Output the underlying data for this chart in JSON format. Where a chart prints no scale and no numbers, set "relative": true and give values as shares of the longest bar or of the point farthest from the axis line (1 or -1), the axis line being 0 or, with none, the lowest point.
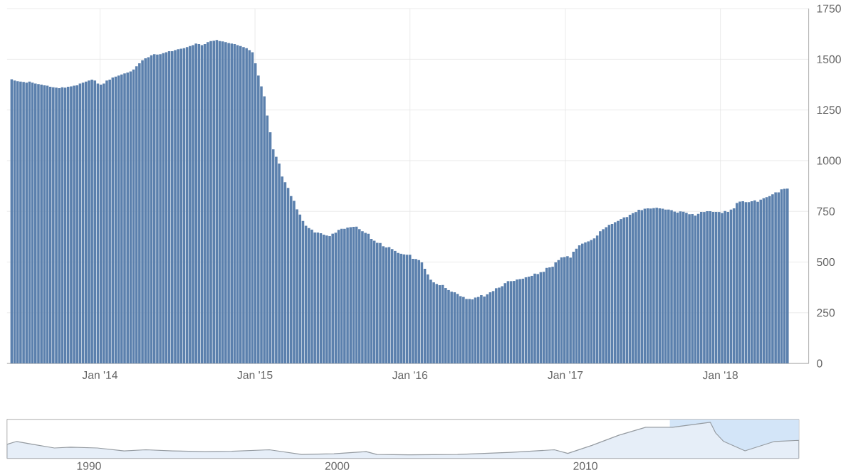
{
  "chart_data": [
    {
      "type": "bar",
      "color": "#5b80ad",
      "grid": true,
      "x": [
        "2013-06-07",
        "2013-06-14",
        "2013-06-21",
        "2013-06-28",
        "2013-07-05",
        "2013-07-12",
        "2013-07-19",
        "2013-07-26",
        "2013-08-02",
        "2013-08-09",
        "2013-08-16",
        "2013-08-23",
        "2013-08-30",
        "2013-09-06",
        "2013-09-13",
        "2013-09-20",
        "2013-09-27",
        "2013-10-04",
        "2013-10-11",
        "2013-10-18",
        "2013-10-25",
        "2013-11-01",
        "2013-11-08",
        "2013-11-15",
        "2013-11-22",
        "2013-11-29",
        "2013-12-06",
        "2013-12-13",
        "2013-12-20",
        "2013-12-27",
        "2014-01-03",
        "2014-01-10",
        "2014-01-17",
        "2014-01-24",
        "2014-01-31",
        "2014-02-07",
        "2014-02-14",
        "2014-02-21",
        "2014-02-28",
        "2014-03-07",
        "2014-03-14",
        "2014-03-21",
        "2014-03-28",
        "2014-04-04",
        "2014-04-11",
        "2014-04-18",
        "2014-04-25",
        "2014-05-02",
        "2014-05-09",
        "2014-05-16",
        "2014-05-23",
        "2014-05-30",
        "2014-06-06",
        "2014-06-13",
        "2014-06-20",
        "2014-06-27",
        "2014-07-04",
        "2014-07-11",
        "2014-07-18",
        "2014-07-25",
        "2014-08-01",
        "2014-08-08",
        "2014-08-15",
        "2014-08-22",
        "2014-08-29",
        "2014-09-05",
        "2014-09-12",
        "2014-09-19",
        "2014-09-26",
        "2014-10-03",
        "2014-10-10",
        "2014-10-17",
        "2014-10-24",
        "2014-10-31",
        "2014-11-07",
        "2014-11-14",
        "2014-11-21",
        "2014-11-28",
        "2014-12-05",
        "2014-12-12",
        "2014-12-19",
        "2014-12-26",
        "2015-01-02",
        "2015-01-09",
        "2015-01-16",
        "2015-01-23",
        "2015-01-30",
        "2015-02-06",
        "2015-02-13",
        "2015-02-20",
        "2015-02-27",
        "2015-03-06",
        "2015-03-13",
        "2015-03-20",
        "2015-03-27",
        "2015-04-03",
        "2015-04-10",
        "2015-04-17",
        "2015-04-24",
        "2015-05-01",
        "2015-05-08",
        "2015-05-15",
        "2015-05-22",
        "2015-05-29",
        "2015-06-05",
        "2015-06-12",
        "2015-06-19",
        "2015-06-26",
        "2015-07-03",
        "2015-07-10",
        "2015-07-17",
        "2015-07-24",
        "2015-07-31",
        "2015-08-07",
        "2015-08-14",
        "2015-08-21",
        "2015-08-28",
        "2015-09-04",
        "2015-09-11",
        "2015-09-18",
        "2015-09-25",
        "2015-10-02",
        "2015-10-09",
        "2015-10-16",
        "2015-10-23",
        "2015-10-30",
        "2015-11-06",
        "2015-11-13",
        "2015-11-20",
        "2015-11-27",
        "2015-12-04",
        "2015-12-11",
        "2015-12-18",
        "2015-12-25",
        "2016-01-01",
        "2016-01-08",
        "2016-01-15",
        "2016-01-22",
        "2016-01-29",
        "2016-02-05",
        "2016-02-12",
        "2016-02-19",
        "2016-02-26",
        "2016-03-04",
        "2016-03-11",
        "2016-03-18",
        "2016-03-25",
        "2016-04-01",
        "2016-04-08",
        "2016-04-15",
        "2016-04-22",
        "2016-04-29",
        "2016-05-06",
        "2016-05-13",
        "2016-05-20",
        "2016-05-27",
        "2016-06-03",
        "2016-06-10",
        "2016-06-17",
        "2016-06-24",
        "2016-07-01",
        "2016-07-08",
        "2016-07-15",
        "2016-07-22",
        "2016-07-29",
        "2016-08-05",
        "2016-08-12",
        "2016-08-19",
        "2016-08-26",
        "2016-09-02",
        "2016-09-09",
        "2016-09-16",
        "2016-09-23",
        "2016-09-30",
        "2016-10-07",
        "2016-10-14",
        "2016-10-21",
        "2016-10-28",
        "2016-11-04",
        "2016-11-11",
        "2016-11-18",
        "2016-11-25",
        "2016-12-02",
        "2016-12-09",
        "2016-12-16",
        "2016-12-23",
        "2016-12-30",
        "2017-01-06",
        "2017-01-13",
        "2017-01-20",
        "2017-01-27",
        "2017-02-03",
        "2017-02-10",
        "2017-02-17",
        "2017-02-24",
        "2017-03-03",
        "2017-03-10",
        "2017-03-17",
        "2017-03-24",
        "2017-03-31",
        "2017-04-07",
        "2017-04-14",
        "2017-04-21",
        "2017-04-28",
        "2017-05-05",
        "2017-05-12",
        "2017-05-19",
        "2017-05-26",
        "2017-06-02",
        "2017-06-09",
        "2017-06-16",
        "2017-06-23",
        "2017-06-30",
        "2017-07-07",
        "2017-07-14",
        "2017-07-21",
        "2017-07-28",
        "2017-08-04",
        "2017-08-11",
        "2017-08-18",
        "2017-08-25",
        "2017-09-01",
        "2017-09-08",
        "2017-09-15",
        "2017-09-22",
        "2017-09-29",
        "2017-10-06",
        "2017-10-13",
        "2017-10-20",
        "2017-10-27",
        "2017-11-03",
        "2017-11-10",
        "2017-11-17",
        "2017-11-24",
        "2017-12-01",
        "2017-12-08",
        "2017-12-15",
        "2017-12-22",
        "2017-12-29",
        "2018-01-05",
        "2018-01-12",
        "2018-01-19",
        "2018-01-26",
        "2018-02-02",
        "2018-02-09",
        "2018-02-16",
        "2018-02-23",
        "2018-03-02",
        "2018-03-09",
        "2018-03-16",
        "2018-03-23",
        "2018-03-30",
        "2018-04-06",
        "2018-04-13",
        "2018-04-20",
        "2018-04-27",
        "2018-05-04",
        "2018-05-11",
        "2018-05-18",
        "2018-05-25",
        "2018-06-01",
        "2018-06-08"
      ],
      "values": [
        1401,
        1395,
        1392,
        1390,
        1388,
        1385,
        1390,
        1385,
        1380,
        1378,
        1375,
        1372,
        1370,
        1365,
        1362,
        1360,
        1358,
        1362,
        1360,
        1365,
        1366,
        1370,
        1372,
        1380,
        1385,
        1390,
        1395,
        1400,
        1395,
        1380,
        1375,
        1380,
        1395,
        1400,
        1410,
        1415,
        1420,
        1425,
        1430,
        1435,
        1440,
        1450,
        1465,
        1480,
        1495,
        1505,
        1510,
        1520,
        1525,
        1523,
        1525,
        1530,
        1535,
        1540,
        1540,
        1545,
        1550,
        1552,
        1555,
        1560,
        1565,
        1570,
        1578,
        1575,
        1570,
        1575,
        1585,
        1590,
        1592,
        1595,
        1590,
        1588,
        1585,
        1580,
        1578,
        1575,
        1570,
        1565,
        1560,
        1555,
        1545,
        1535,
        1480,
        1420,
        1366,
        1317,
        1223,
        1140,
        1056,
        1019,
        986,
        922,
        894,
        866,
        825,
        802,
        760,
        734,
        703,
        679,
        668,
        660,
        646,
        646,
        642,
        635,
        631,
        628,
        640,
        645,
        659,
        664,
        664,
        670,
        672,
        674,
        675,
        662,
        652,
        644,
        640,
        614,
        605,
        595,
        594,
        578,
        572,
        574,
        564,
        555,
        545,
        541,
        538,
        536,
        536,
        516,
        515,
        510,
        498,
        467,
        439,
        413,
        400,
        392,
        386,
        387,
        372,
        362,
        354,
        351,
        343,
        332,
        328,
        318,
        318,
        316,
        325,
        328,
        337,
        330,
        341,
        351,
        357,
        371,
        374,
        381,
        396,
        406,
        406,
        407,
        414,
        416,
        418,
        425,
        428,
        432,
        443,
        441,
        450,
        452,
        471,
        474,
        477,
        498,
        510,
        523,
        525,
        529,
        522,
        551,
        566,
        583,
        591,
        597,
        602,
        609,
        617,
        631,
        652,
        662,
        672,
        683,
        688,
        697,
        703,
        712,
        720,
        722,
        733,
        741,
        747,
        758,
        756,
        763,
        765,
        764,
        766,
        768,
        765,
        763,
        759,
        759,
        756,
        749,
        744,
        750,
        748,
        743,
        736,
        737,
        729,
        738,
        747,
        747,
        751,
        751,
        747,
        747,
        747,
        742,
        752,
        747,
        759,
        765,
        791,
        798,
        800,
        796,
        796,
        800,
        804,
        797,
        808,
        815,
        820,
        825,
        834,
        844,
        844,
        859,
        861,
        862
      ],
      "xlim": [
        "2013-05-27",
        "2018-07-28"
      ],
      "xticks": [
        {
          "value": "2014-01-01",
          "label": "Jan '14"
        },
        {
          "value": "2015-01-01",
          "label": "Jan '15"
        },
        {
          "value": "2016-01-01",
          "label": "Jan '16"
        },
        {
          "value": "2017-01-01",
          "label": "Jan '17"
        },
        {
          "value": "2018-01-01",
          "label": "Jan '18"
        }
      ],
      "ylim": [
        0,
        1750
      ],
      "yticks": [
        0,
        250,
        500,
        750,
        1000,
        1250,
        1500,
        1750
      ]
    },
    {
      "type": "area",
      "relative": true,
      "color": "#e6eef8",
      "tick_labels": "x",
      "x": [
        1986.7,
        1987.09,
        1987.74,
        1988.61,
        1989.26,
        1990.34,
        1991.42,
        1992.29,
        1993.37,
        1994.67,
        1995.75,
        1997.27,
        1998.57,
        1999.87,
        2001.17,
        2001.6,
        2002.9,
        2004.85,
        2007.01,
        2008.75,
        2009.29,
        2010.26,
        2011.34,
        2012.43,
        2013.51,
        2014.59,
        2015.03,
        2015.24,
        2015.57,
        2016.43,
        2017.62,
        2018.6
      ],
      "values": [
        0.39,
        0.47,
        0.39,
        0.29,
        0.31,
        0.29,
        0.21,
        0.24,
        0.21,
        0.19,
        0.2,
        0.24,
        0.11,
        0.13,
        0.19,
        0.11,
        0.1,
        0.11,
        0.17,
        0.24,
        0.14,
        0.36,
        0.64,
        0.86,
        0.86,
        0.96,
        1,
        0.71,
        0.47,
        0.21,
        0.47,
        0.5
      ],
      "xlim": [
        1986.7,
        2018.6
      ],
      "xticks": [
        1990,
        2000,
        2010
      ],
      "bands": [
        {
          "axis": "x",
          "from": 2013.4,
          "to": 2018.6,
          "color": "#d3e5f8"
        }
      ]
    }
  ]
}
